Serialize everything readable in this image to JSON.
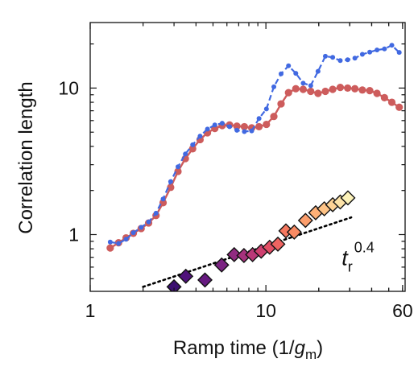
{
  "chart_data": {
    "type": "scatter",
    "xlabel": "Ramp time (1/",
    "xlabel_var": "g",
    "xlabel_sub": "m",
    "xlabel_close": ")",
    "ylabel": "Correlation length",
    "xscale": "log",
    "yscale": "log",
    "xlim": [
      1,
      62
    ],
    "ylim": [
      0.41,
      28
    ],
    "xticks": [
      1,
      10,
      60
    ],
    "xtick_labels": [
      "1",
      "10",
      "60"
    ],
    "yticks": [
      1,
      10
    ],
    "ytick_labels": [
      "1",
      "10"
    ],
    "grid": false,
    "legend": "none",
    "annotation": {
      "base": "t",
      "sub": "r",
      "sup": "0.4",
      "x": 27,
      "y": 0.62
    },
    "series": [
      {
        "style": "line-markers",
        "color": "#cd5c5c",
        "dash": false,
        "x": [
          1.3,
          1.45,
          1.6,
          1.76,
          1.95,
          2.15,
          2.37,
          2.6,
          2.87,
          3.16,
          3.48,
          3.83,
          4.22,
          4.65,
          5.12,
          5.64,
          6.21,
          6.84,
          7.54,
          8.3,
          9.14,
          10.07,
          11.1,
          12.2,
          13.45,
          14.8,
          16.3,
          18.0,
          19.8,
          21.8,
          24.0,
          26.5,
          29.2,
          32.1,
          35.4,
          39.0,
          42.9,
          47.3,
          52.1,
          57.4
        ],
        "y": [
          0.81,
          0.88,
          0.95,
          1.02,
          1.1,
          1.2,
          1.35,
          1.65,
          2.1,
          2.7,
          3.3,
          3.85,
          4.45,
          4.95,
          5.3,
          5.55,
          5.6,
          5.5,
          5.45,
          5.35,
          5.45,
          5.65,
          6.4,
          7.8,
          9.3,
          9.9,
          9.8,
          9.5,
          9.2,
          9.5,
          9.8,
          10.1,
          10.0,
          9.9,
          9.7,
          9.6,
          9.2,
          8.6,
          8.0,
          7.4
        ]
      },
      {
        "style": "dashed-dots",
        "color": "#4169e1",
        "dash": true,
        "x": [
          1.3,
          1.45,
          1.6,
          1.76,
          1.95,
          2.15,
          2.37,
          2.6,
          2.87,
          3.16,
          3.48,
          3.83,
          4.22,
          4.65,
          5.12,
          5.64,
          6.21,
          6.84,
          7.54,
          8.3,
          9.14,
          10.07,
          11.1,
          12.2,
          13.45,
          14.8,
          16.3,
          18.0,
          19.8,
          21.8,
          24.0,
          26.5,
          29.2,
          32.1,
          35.4,
          39.0,
          42.9,
          47.3,
          52.1,
          57.4
        ],
        "y": [
          0.89,
          0.87,
          0.93,
          1.03,
          1.12,
          1.22,
          1.4,
          1.75,
          2.3,
          2.9,
          3.55,
          4.1,
          4.7,
          5.25,
          5.6,
          5.75,
          5.45,
          5.15,
          5.05,
          5.1,
          6.2,
          7.2,
          10.2,
          12.5,
          14.2,
          12.6,
          10.8,
          10.4,
          13.0,
          16.5,
          16.2,
          15.4,
          15.6,
          16.0,
          17.0,
          17.6,
          18.2,
          18.5,
          19.6,
          17.5
        ]
      },
      {
        "style": "diamonds",
        "colormap": "magma",
        "x": [
          3.0,
          3.5,
          4.5,
          5.6,
          6.6,
          7.5,
          8.4,
          9.4,
          10.5,
          11.7,
          13.0,
          14.5,
          16.8,
          19.2,
          21.5,
          24.0,
          26.5,
          29.3
        ],
        "y": [
          0.44,
          0.52,
          0.49,
          0.62,
          0.73,
          0.72,
          0.73,
          0.77,
          0.82,
          0.86,
          1.06,
          1.04,
          1.25,
          1.41,
          1.5,
          1.6,
          1.67,
          1.78
        ],
        "colors": [
          "#3b0f70",
          "#50127b",
          "#661a80",
          "#7b2382",
          "#912b81",
          "#a6317d",
          "#ba3878",
          "#cf4070",
          "#e24f65",
          "#ef6461",
          "#f5785f",
          "#f98b64",
          "#fc9e6c",
          "#feb077",
          "#fec386",
          "#fed396",
          "#fde3a8",
          "#fcf2b9"
        ]
      },
      {
        "style": "fit-line",
        "color": "#000000",
        "dash": "dotted",
        "exponent": 0.4,
        "x": [
          2.0,
          30.6
        ],
        "y": [
          0.44,
          1.31
        ]
      }
    ]
  }
}
